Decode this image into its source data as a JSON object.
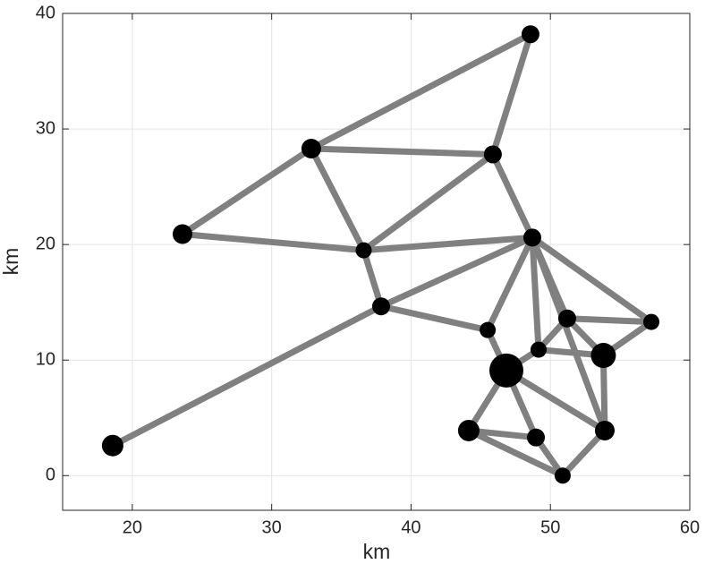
{
  "chart_data": {
    "type": "graph",
    "xlabel": "km",
    "ylabel": "km",
    "x": [
      48.57,
      32.84,
      45.87,
      23.6,
      36.6,
      48.7,
      37.85,
      45.5,
      51.2,
      57.24,
      49.15,
      53.8,
      46.84,
      44.14,
      48.96,
      53.9,
      50.88,
      18.59
    ],
    "y": [
      38.2,
      28.3,
      27.8,
      20.9,
      19.5,
      20.6,
      14.65,
      12.6,
      13.6,
      13.3,
      10.9,
      10.4,
      9.1,
      3.9,
      3.3,
      3.9,
      0.0,
      2.6
    ],
    "sizes": [
      10,
      11,
      10,
      11,
      9,
      10,
      10,
      9,
      10,
      9,
      9,
      14,
      19,
      12,
      10,
      11,
      9,
      12
    ],
    "edges": [
      [
        0,
        1
      ],
      [
        0,
        2
      ],
      [
        1,
        2
      ],
      [
        1,
        3
      ],
      [
        1,
        4
      ],
      [
        3,
        4
      ],
      [
        4,
        2
      ],
      [
        2,
        5
      ],
      [
        4,
        5
      ],
      [
        4,
        6
      ],
      [
        6,
        5
      ],
      [
        6,
        17
      ],
      [
        6,
        7
      ],
      [
        5,
        7
      ],
      [
        5,
        10
      ],
      [
        5,
        8
      ],
      [
        5,
        9
      ],
      [
        5,
        15
      ],
      [
        7,
        12
      ],
      [
        12,
        10
      ],
      [
        10,
        8
      ],
      [
        10,
        11
      ],
      [
        8,
        11
      ],
      [
        8,
        9
      ],
      [
        9,
        11
      ],
      [
        11,
        15
      ],
      [
        12,
        13
      ],
      [
        12,
        14
      ],
      [
        12,
        15
      ],
      [
        13,
        14
      ],
      [
        14,
        16
      ],
      [
        15,
        16
      ],
      [
        13,
        16
      ]
    ],
    "edge_color": "#808080",
    "node_color": "#000000",
    "xlim": [
      15,
      60
    ],
    "ylim": [
      -3,
      40
    ],
    "xticks": [
      20,
      30,
      40,
      50,
      60
    ],
    "yticks": [
      0,
      10,
      20,
      30,
      40
    ],
    "grid": true
  }
}
